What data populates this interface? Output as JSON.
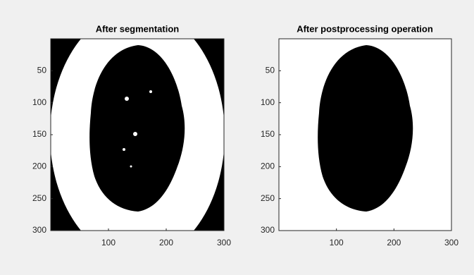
{
  "chart_data": [
    {
      "type": "image",
      "title": "After segmentation",
      "xlim": [
        0,
        300
      ],
      "ylim": [
        0,
        300
      ],
      "y_reversed": true,
      "xticks": [
        100,
        200,
        300
      ],
      "yticks": [
        50,
        100,
        150,
        200,
        250,
        300
      ]
    },
    {
      "type": "image",
      "title": "After postprocessing operation",
      "xlim": [
        0,
        300
      ],
      "ylim": [
        0,
        300
      ],
      "y_reversed": true,
      "xticks": [
        100,
        200,
        300
      ],
      "yticks": [
        50,
        100,
        150,
        200,
        250,
        300
      ]
    }
  ]
}
